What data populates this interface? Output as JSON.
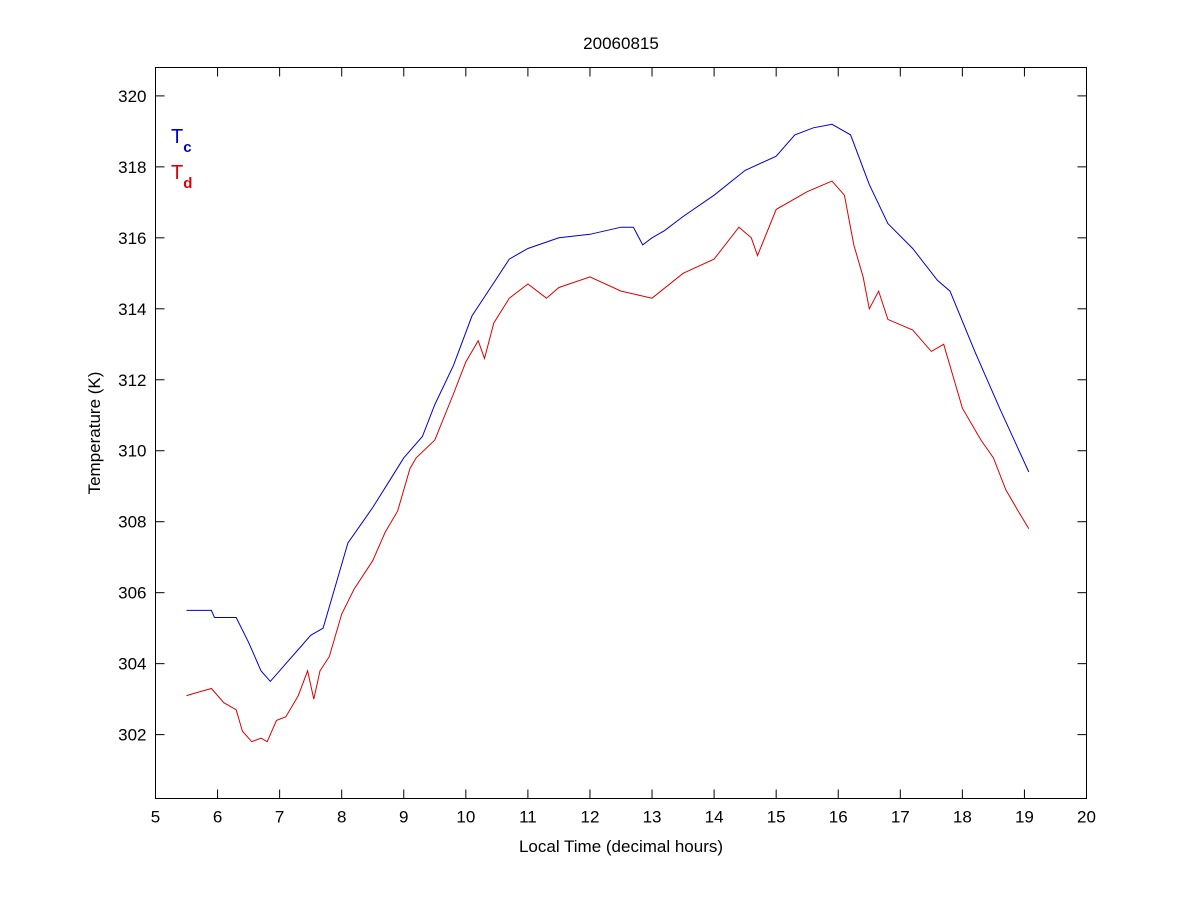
{
  "chart_data": {
    "type": "line",
    "title": "20060815",
    "xlabel": "Local Time (decimal hours)",
    "ylabel": "Temperature (K)",
    "xlim": [
      5,
      20
    ],
    "ylim": [
      300.2,
      320.8
    ],
    "xticks": [
      5,
      6,
      7,
      8,
      9,
      10,
      11,
      12,
      13,
      14,
      15,
      16,
      17,
      18,
      19,
      20
    ],
    "yticks": [
      302,
      304,
      306,
      308,
      310,
      312,
      314,
      316,
      318,
      320
    ],
    "grid": false,
    "legend": {
      "placement": "top-left",
      "entries": [
        {
          "base": "T",
          "sub": "c",
          "color": "#0000cc"
        },
        {
          "base": "T",
          "sub": "d",
          "color": "#dd0000"
        }
      ]
    },
    "series": [
      {
        "name": "Tc",
        "color": "#0000cc",
        "x": [
          5.5,
          5.9,
          5.95,
          6.3,
          6.5,
          6.7,
          6.85,
          7.0,
          7.1,
          7.3,
          7.5,
          7.7,
          7.9,
          8.1,
          8.3,
          8.5,
          8.75,
          9.0,
          9.3,
          9.5,
          9.8,
          10.1,
          10.4,
          10.7,
          11.0,
          11.5,
          12.0,
          12.5,
          12.7,
          12.85,
          13.0,
          13.2,
          13.5,
          14.0,
          14.5,
          15.0,
          15.3,
          15.6,
          15.9,
          16.2,
          16.5,
          16.8,
          17.2,
          17.6,
          17.8,
          18.2,
          18.6,
          19.07
        ],
        "y": [
          305.5,
          305.5,
          305.3,
          305.3,
          304.6,
          303.8,
          303.5,
          303.8,
          304.0,
          304.4,
          304.8,
          305.0,
          306.2,
          307.4,
          307.9,
          308.4,
          309.1,
          309.8,
          310.4,
          311.3,
          312.4,
          313.8,
          314.6,
          315.4,
          315.7,
          316.0,
          316.1,
          316.3,
          316.3,
          315.8,
          316.0,
          316.2,
          316.6,
          317.2,
          317.9,
          318.3,
          318.9,
          319.1,
          319.2,
          318.9,
          317.5,
          316.4,
          315.7,
          314.8,
          314.5,
          312.8,
          311.2,
          309.4
        ]
      },
      {
        "name": "Td",
        "color": "#dd0000",
        "x": [
          5.5,
          5.7,
          5.9,
          6.1,
          6.3,
          6.4,
          6.55,
          6.7,
          6.8,
          6.95,
          7.1,
          7.3,
          7.45,
          7.55,
          7.65,
          7.8,
          8.0,
          8.2,
          8.5,
          8.7,
          8.9,
          9.1,
          9.2,
          9.5,
          9.8,
          10.0,
          10.2,
          10.3,
          10.45,
          10.7,
          11.0,
          11.3,
          11.5,
          12.0,
          12.5,
          13.0,
          13.5,
          14.0,
          14.4,
          14.6,
          14.7,
          15.0,
          15.5,
          15.9,
          16.1,
          16.25,
          16.4,
          16.5,
          16.65,
          16.8,
          17.2,
          17.5,
          17.7,
          18.0,
          18.3,
          18.5,
          18.7,
          18.9,
          19.07
        ],
        "y": [
          303.1,
          303.2,
          303.3,
          302.9,
          302.7,
          302.1,
          301.8,
          301.9,
          301.8,
          302.4,
          302.5,
          303.1,
          303.8,
          303.0,
          303.8,
          304.2,
          305.4,
          306.1,
          306.9,
          307.7,
          308.3,
          309.5,
          309.8,
          310.3,
          311.6,
          312.5,
          313.1,
          312.6,
          313.6,
          314.3,
          314.7,
          314.3,
          314.6,
          314.9,
          314.5,
          314.3,
          315.0,
          315.4,
          316.3,
          316.0,
          315.5,
          316.8,
          317.3,
          317.6,
          317.2,
          315.8,
          314.9,
          314.0,
          314.5,
          313.7,
          313.4,
          312.8,
          313.0,
          311.2,
          310.3,
          309.8,
          308.9,
          308.3,
          307.8
        ]
      }
    ]
  }
}
